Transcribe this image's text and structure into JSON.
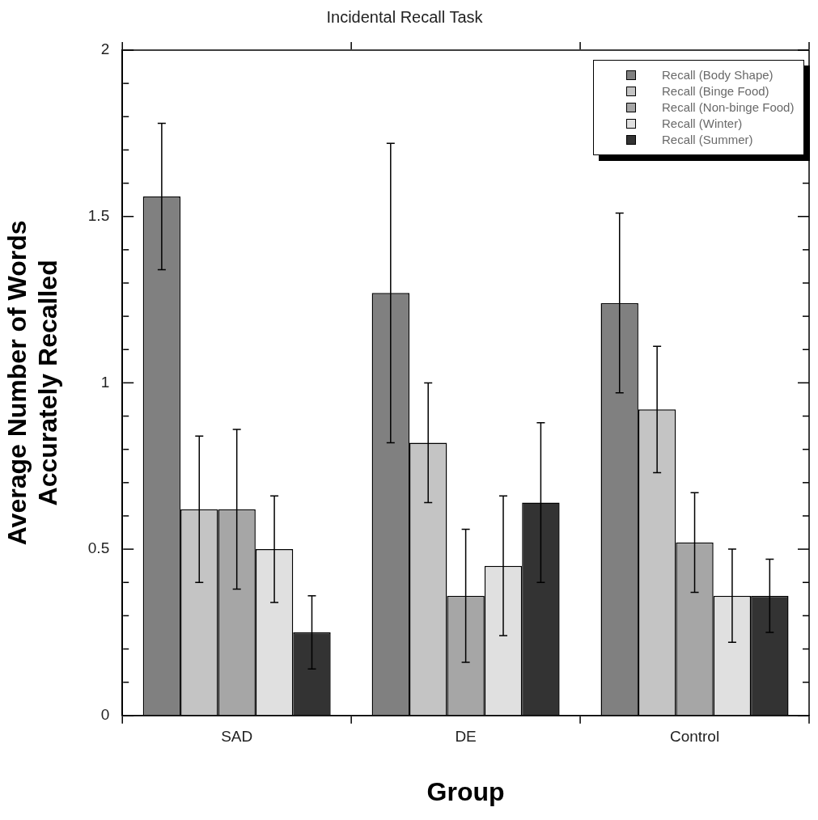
{
  "chart_data": {
    "type": "bar",
    "title": "Incidental Recall Task",
    "xlabel": "Group",
    "ylabel": "Average Number of Words\nAccurately Recalled",
    "categories": [
      "SAD",
      "DE",
      "Control"
    ],
    "series": [
      {
        "name": "Recall (Body Shape)",
        "color": "#808080",
        "values": [
          1.56,
          1.27,
          1.24
        ],
        "errors": [
          0.22,
          0.45,
          0.27
        ]
      },
      {
        "name": "Recall (Binge Food)",
        "color": "#c4c4c4",
        "values": [
          0.62,
          0.82,
          0.92
        ],
        "errors": [
          0.22,
          0.18,
          0.19
        ]
      },
      {
        "name": "Recall (Non-binge Food)",
        "color": "#a6a6a6",
        "values": [
          0.62,
          0.36,
          0.52
        ],
        "errors": [
          0.24,
          0.2,
          0.15
        ]
      },
      {
        "name": "Recall (Winter)",
        "color": "#e0e0e0",
        "values": [
          0.5,
          0.45,
          0.36
        ],
        "errors": [
          0.16,
          0.21,
          0.14
        ]
      },
      {
        "name": "Recall (Summer)",
        "color": "#333333",
        "values": [
          0.25,
          0.64,
          0.36
        ],
        "errors": [
          0.11,
          0.24,
          0.11
        ]
      }
    ],
    "ylim": [
      0,
      2
    ],
    "yticks": [
      0,
      {
        "value": 0.1,
        "label": null
      },
      {
        "value": 0.2,
        "label": null
      },
      {
        "value": 0.3,
        "label": null
      },
      {
        "value": 0.4,
        "label": null
      },
      0.5,
      {
        "value": 0.6,
        "label": null
      },
      {
        "value": 0.7,
        "label": null
      },
      {
        "value": 0.8,
        "label": null
      },
      {
        "value": 0.9,
        "label": null
      },
      1,
      {
        "value": 1.1,
        "label": null
      },
      {
        "value": 1.2,
        "label": null
      },
      {
        "value": 1.3,
        "label": null
      },
      {
        "value": 1.4,
        "label": null
      },
      1.5,
      {
        "value": 1.6,
        "label": null
      },
      {
        "value": 1.7,
        "label": null
      },
      {
        "value": 1.8,
        "label": null
      },
      {
        "value": 1.9,
        "label": null
      },
      2
    ],
    "grid": false,
    "legend": "top right"
  }
}
